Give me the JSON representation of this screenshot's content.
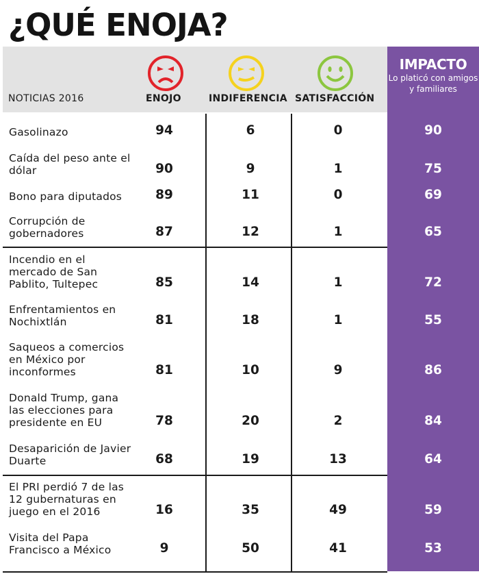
{
  "title": "¿QUÉ ENOJA?",
  "colors": {
    "header_band": "#e3e3e3",
    "impacto_column": "#7a53a2",
    "enojo_face": "#e2232a",
    "indiferencia_face": "#f5d21e",
    "satisfaccion_face": "#8cc63f"
  },
  "chart_data": {
    "type": "table",
    "title": "¿QUÉ ENOJA?",
    "columns": {
      "news": "NOTICIAS 2016",
      "enojo": "ENOJO",
      "indiferencia": "INDIFERENCIA",
      "satisfaccion": "SATISFACCIÓN",
      "impacto": "IMPACTO",
      "impacto_sub": "Lo platicó con amigos y familiares"
    },
    "rows": [
      {
        "name": "Gasolinazo",
        "enojo": 94,
        "indiferencia": 6,
        "satisfaccion": 0,
        "impacto": 90
      },
      {
        "name": "Caída del peso ante el dólar",
        "enojo": 90,
        "indiferencia": 9,
        "satisfaccion": 1,
        "impacto": 75
      },
      {
        "name": "Bono para diputados",
        "enojo": 89,
        "indiferencia": 11,
        "satisfaccion": 0,
        "impacto": 69
      },
      {
        "name": "Corrupción de gobernadores",
        "enojo": 87,
        "indiferencia": 12,
        "satisfaccion": 1,
        "impacto": 65
      },
      {
        "name": "Incendio en el mercado de San Pablito, Tultepec",
        "enojo": 85,
        "indiferencia": 14,
        "satisfaccion": 1,
        "impacto": 72
      },
      {
        "name": "Enfrentamientos en Nochixtlán",
        "enojo": 81,
        "indiferencia": 18,
        "satisfaccion": 1,
        "impacto": 55
      },
      {
        "name": "Saqueos a comercios en México por inconformes",
        "enojo": 81,
        "indiferencia": 10,
        "satisfaccion": 9,
        "impacto": 86
      },
      {
        "name": "Donald Trump, gana las elecciones para presidente en EU",
        "enojo": 78,
        "indiferencia": 20,
        "satisfaccion": 2,
        "impacto": 84
      },
      {
        "name": "Desaparición de Javier Duarte",
        "enojo": 68,
        "indiferencia": 19,
        "satisfaccion": 13,
        "impacto": 64
      },
      {
        "name": "El PRI perdió 7 de las 12 gubernaturas en juego en el 2016",
        "enojo": 16,
        "indiferencia": 35,
        "satisfaccion": 49,
        "impacto": 59
      },
      {
        "name": "Visita del Papa Francisco a México",
        "enojo": 9,
        "indiferencia": 50,
        "satisfaccion": 41,
        "impacto": 53
      }
    ]
  }
}
